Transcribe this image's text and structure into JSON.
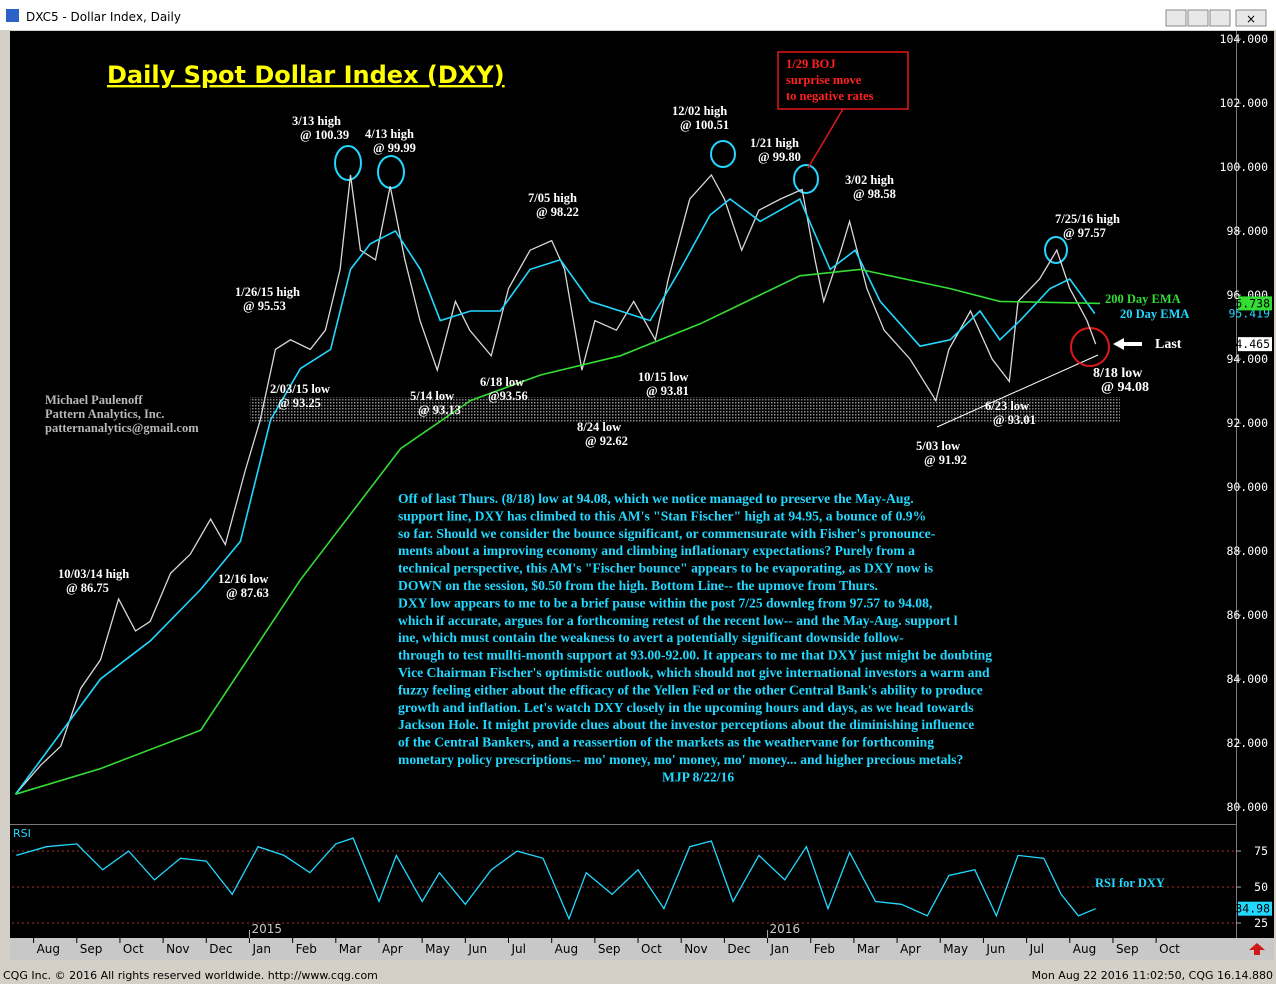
{
  "window": {
    "title": "DXC5 - Dollar Index, Daily",
    "footer_left": "CQG Inc. © 2016 All rights reserved worldwide. http://www.cqg.com",
    "footer_right": "Mon Aug 22 2016 11:02:50, CQG 16.14.880"
  },
  "chart_data": [
    {
      "type": "line",
      "title": "Daily Spot Dollar Index (DXY)",
      "xlim": [
        -0.5,
        27.85
      ],
      "ylim": [
        79.5,
        104.22
      ],
      "yticks": [
        {
          "value": 80,
          "label": "80.000"
        },
        {
          "value": 82,
          "label": "82.000"
        },
        {
          "value": 84,
          "label": "84.000"
        },
        {
          "value": 86,
          "label": "86.000"
        },
        {
          "value": 88,
          "label": "88.000"
        },
        {
          "value": 90,
          "label": "90.000"
        },
        {
          "value": 92,
          "label": "92.000"
        },
        {
          "value": 94,
          "label": "94.000"
        },
        {
          "value": 96,
          "label": "96.000"
        },
        {
          "value": 98,
          "label": "98.000"
        },
        {
          "value": 100,
          "label": "100.000"
        },
        {
          "value": 102,
          "label": "102.000"
        },
        {
          "value": 104,
          "label": "104.000"
        }
      ],
      "last_marker": "Last",
      "series": [
        {
          "color": "#d8d8d8",
          "axis_label": "94.465",
          "x": [
            -0.42,
            0.16,
            0.63,
            1.09,
            1.55,
            1.97,
            2.36,
            2.7,
            3.17,
            3.63,
            4.1,
            4.44,
            4.9,
            5.25,
            5.6,
            5.95,
            6.41,
            6.76,
            7.1,
            7.34,
            7.57,
            7.92,
            8.26,
            8.6,
            8.95,
            9.35,
            9.77,
            10.1,
            10.6,
            11.0,
            11.5,
            12.0,
            12.3,
            12.7,
            13.0,
            13.5,
            13.9,
            14.4,
            14.7,
            15.2,
            15.7,
            16.0,
            16.4,
            16.8,
            17.3,
            17.8,
            18.1,
            18.3,
            18.7,
            18.9,
            19.3,
            19.7,
            20.3,
            20.9,
            21.2,
            21.7,
            22.2,
            22.6,
            22.8,
            23.3,
            23.7,
            24.0,
            24.4,
            24.6
          ],
          "values": [
            80.4,
            81.3,
            81.9,
            83.7,
            84.6,
            86.5,
            85.5,
            85.8,
            87.3,
            87.9,
            89.0,
            88.2,
            90.5,
            92.1,
            94.3,
            94.6,
            94.3,
            94.9,
            96.8,
            99.75,
            97.4,
            97.1,
            99.4,
            97.1,
            95.2,
            93.65,
            95.8,
            94.9,
            94.1,
            96.2,
            97.4,
            97.7,
            96.8,
            93.65,
            95.2,
            94.9,
            95.8,
            94.6,
            96.5,
            99.0,
            99.75,
            99.0,
            97.4,
            98.65,
            99.0,
            99.3,
            97.1,
            95.8,
            97.4,
            98.3,
            96.2,
            94.9,
            94.0,
            92.7,
            94.3,
            95.5,
            94.0,
            93.3,
            95.8,
            96.5,
            97.4,
            96.2,
            95.2,
            94.465
          ]
        },
        {
          "name": "20 Day EMA",
          "color": "#22d8ff",
          "axis_label": "95.419",
          "x": [
            -0.42,
            1.55,
            2.71,
            3.87,
            4.79,
            5.49,
            6.18,
            6.88,
            7.34,
            7.8,
            8.38,
            8.96,
            9.42,
            10.12,
            10.81,
            11.5,
            12.2,
            12.89,
            13.59,
            14.28,
            14.98,
            15.67,
            16.13,
            16.83,
            17.75,
            18.45,
            19.03,
            19.61,
            20.53,
            21.23,
            21.92,
            22.38,
            22.85,
            23.54,
            24.0,
            24.58
          ],
          "values": [
            80.4,
            84.0,
            85.2,
            86.8,
            88.3,
            92.1,
            93.7,
            94.3,
            96.8,
            97.6,
            98.0,
            96.8,
            95.2,
            95.5,
            95.5,
            96.8,
            97.1,
            95.8,
            95.5,
            95.2,
            96.8,
            98.5,
            99.0,
            98.3,
            99.0,
            96.8,
            97.4,
            95.8,
            94.4,
            94.6,
            95.5,
            94.6,
            95.2,
            96.2,
            96.5,
            95.419
          ]
        },
        {
          "name": "200 Day EMA",
          "color": "#33dd33",
          "axis_label": "95.738",
          "x": [
            -0.42,
            1.55,
            3.87,
            6.18,
            8.5,
            10.12,
            11.74,
            13.59,
            15.44,
            17.75,
            19.14,
            21.23,
            22.38,
            24.7
          ],
          "values": [
            80.4,
            81.2,
            82.4,
            87.1,
            91.2,
            92.7,
            93.5,
            94.1,
            95.1,
            96.6,
            96.8,
            96.2,
            95.8,
            95.738
          ]
        }
      ]
    },
    {
      "type": "line",
      "title": "RSI",
      "xlim": [
        -0.5,
        27.85
      ],
      "ylim": [
        16.7,
        92.4
      ],
      "yticks": [
        25,
        50,
        75
      ],
      "xticks": [
        {
          "value": 0,
          "label": "Aug"
        },
        {
          "value": 1,
          "label": "Sep"
        },
        {
          "value": 2,
          "label": "Oct"
        },
        {
          "value": 3,
          "label": "Nov"
        },
        {
          "value": 4,
          "label": "Dec"
        },
        {
          "value": 5,
          "label": "Jan"
        },
        {
          "value": 6,
          "label": "Feb"
        },
        {
          "value": 7,
          "label": "Mar"
        },
        {
          "value": 8,
          "label": "Apr"
        },
        {
          "value": 9,
          "label": "May"
        },
        {
          "value": 10,
          "label": "Jun"
        },
        {
          "value": 11,
          "label": "Jul"
        },
        {
          "value": 12,
          "label": "Aug"
        },
        {
          "value": 13,
          "label": "Sep"
        },
        {
          "value": 14,
          "label": "Oct"
        },
        {
          "value": 15,
          "label": "Nov"
        },
        {
          "value": 16,
          "label": "Dec"
        },
        {
          "value": 17,
          "label": "Jan"
        },
        {
          "value": 18,
          "label": "Feb"
        },
        {
          "value": 19,
          "label": "Mar"
        },
        {
          "value": 20,
          "label": "Apr"
        },
        {
          "value": 21,
          "label": "May"
        },
        {
          "value": 22,
          "label": "Jun"
        },
        {
          "value": 23,
          "label": "Jul"
        },
        {
          "value": 24,
          "label": "Aug"
        },
        {
          "value": 25,
          "label": "Sep"
        },
        {
          "value": 26,
          "label": "Oct"
        }
      ],
      "year_ticks": [
        {
          "value": 5,
          "label": "2015"
        },
        {
          "value": 17,
          "label": "2016"
        }
      ],
      "series": [
        {
          "name": "RSI for DXY",
          "color": "#22d8ff",
          "axis_label": "34.98",
          "x": [
            -0.4,
            0.3,
            1.0,
            1.6,
            2.2,
            2.8,
            3.4,
            4.0,
            4.6,
            5.2,
            5.8,
            6.4,
            7.0,
            7.4,
            8.0,
            8.4,
            9.0,
            9.4,
            10.0,
            10.6,
            11.2,
            11.8,
            12.4,
            12.8,
            13.4,
            14.0,
            14.6,
            15.2,
            15.7,
            16.2,
            16.8,
            17.4,
            17.9,
            18.4,
            18.9,
            19.5,
            20.1,
            20.7,
            21.2,
            21.8,
            22.3,
            22.8,
            23.4,
            23.8,
            24.2,
            24.6
          ],
          "values": [
            72,
            78,
            80,
            62,
            75,
            55,
            70,
            68,
            45,
            78,
            72,
            60,
            80,
            84,
            40,
            72,
            40,
            60,
            38,
            62,
            75,
            70,
            28,
            60,
            45,
            62,
            35,
            78,
            82,
            40,
            72,
            55,
            78,
            35,
            74,
            40,
            38,
            30,
            58,
            62,
            30,
            72,
            70,
            45,
            30,
            34.98
          ]
        }
      ]
    }
  ],
  "annotations": [
    {
      "lines": [
        "3/13 high",
        "@ 100.39"
      ]
    },
    {
      "lines": [
        "4/13 high",
        "@ 99.99"
      ]
    },
    {
      "lines": [
        "12/02 high",
        "@ 100.51"
      ]
    },
    {
      "lines": [
        "1/21 high",
        "@ 99.80"
      ]
    },
    {
      "lines": [
        "3/02 high",
        "@ 98.58"
      ]
    },
    {
      "lines": [
        "7/05 high",
        "@ 98.22"
      ]
    },
    {
      "lines": [
        "7/25/16 high",
        "@ 97.57"
      ]
    },
    {
      "lines": [
        "1/26/15 high",
        "@ 95.53"
      ]
    },
    {
      "lines": [
        "2/03/15 low",
        "@ 93.25"
      ]
    },
    {
      "lines": [
        "5/14 low",
        "@ 93.13"
      ]
    },
    {
      "lines": [
        "6/18 low",
        "@93.56"
      ]
    },
    {
      "lines": [
        "10/15 low",
        "@ 93.81"
      ]
    },
    {
      "lines": [
        "8/24 low",
        "@ 92.62"
      ]
    },
    {
      "lines": [
        "6/23 low",
        "@ 93.01"
      ]
    },
    {
      "lines": [
        "5/03 low",
        "@ 91.92"
      ]
    },
    {
      "lines": [
        "8/18 low",
        "@ 94.08"
      ]
    },
    {
      "lines": [
        "10/03/14 high",
        "@ 86.75"
      ]
    },
    {
      "lines": [
        "12/16 low",
        "@ 87.63"
      ]
    }
  ],
  "boj_note": [
    "1/29 BOJ",
    "surprise move",
    "to negative rates"
  ],
  "signature": [
    "Michael Paulenoff",
    "Pattern Analytics, Inc.",
    "patternanalytics@gmail.com"
  ],
  "commentary": {
    "lines": [
      "Off of last Thurs. (8/18) low at 94.08, which we notice managed to preserve the May-Aug.",
      "support line, DXY has climbed to this AM's \"Stan Fischer\" high at 94.95, a bounce of 0.9%",
      "so far. Should we consider the bounce significant, or commensurate with Fisher's pronounce-",
      "ments about a improving economy and climbing inflationary expectations? Purely from a",
      "technical perspective, this AM's \"Fischer bounce\" appears to be evaporating, as DXY now is",
      "DOWN on the session,  $0.50 from the high. Bottom Line-- the upmove from Thurs.",
      "DXY low appears to me to be a brief pause within the post 7/25 downleg from 97.57 to 94.08,",
      "which if accurate, argues for a forthcoming retest of the recent low-- and the May-Aug. support l",
      "ine, which must contain the weakness to avert a potentially significant downside follow-",
      "through to test mullti-month support at 93.00-92.00. It appears to me that DXY just might be doubting",
      "Vice Chairman Fischer's optimistic outlook, which should not give international investors a warm and",
      "fuzzy feeling either about the efficacy of the Yellen Fed or the other Central Bank's ability to produce",
      "growth and inflation. Let's watch DXY closely in the upcoming hours and days, as we head towards",
      "Jackson Hole. It might provide clues about the investor perceptions about the diminishing influence",
      "of the Central Bankers, and a reassertion of the markets as the weathervane for forthcoming",
      "monetary policy prescriptions-- mo' money, mo' money, mo' money... and higher precious metals?"
    ],
    "signoff": "MJP 8/22/16"
  }
}
